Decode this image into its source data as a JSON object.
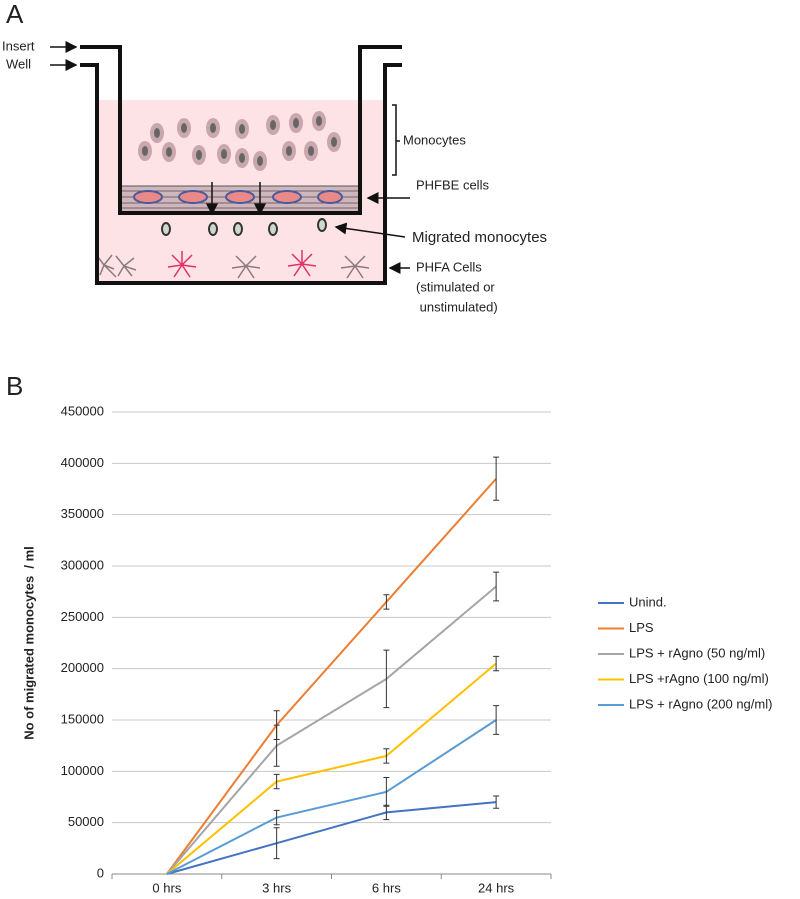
{
  "panel_a": {
    "label": "A",
    "insert": "Insert",
    "well": "Well",
    "monocytes": "Monocytes",
    "phfbe": "PHFBE cells",
    "migrated": "Migrated monocytes",
    "phfa": [
      "PHFA Cells",
      "(stimulated or",
      " unstimulated)"
    ]
  },
  "chart_data": {
    "type": "line",
    "panel_label": "B",
    "y_label": "No of migrated monocytes  / ml",
    "categories": [
      "0 hrs",
      "3 hrs",
      "6 hrs",
      "24 hrs"
    ],
    "ylim": [
      0,
      450000
    ],
    "yticks": [
      0,
      50000,
      100000,
      150000,
      200000,
      250000,
      300000,
      350000,
      400000,
      450000
    ],
    "grid": true,
    "legend": "right",
    "series": [
      {
        "name": "Unind.",
        "color": "#4472c4",
        "values": [
          0,
          30000,
          60000,
          70000
        ],
        "errors": [
          null,
          15000,
          7000,
          6000
        ]
      },
      {
        "name": "LPS",
        "color": "#ed7d31",
        "values": [
          0,
          145000,
          265000,
          385000
        ],
        "errors": [
          null,
          14000,
          7000,
          21000
        ]
      },
      {
        "name": "LPS + rAgno (50 ng/ml)",
        "color": "#a5a5a5",
        "values": [
          0,
          125000,
          190000,
          280000
        ],
        "errors": [
          null,
          20000,
          28000,
          14000
        ]
      },
      {
        "name": "LPS +rAgno (100 ng/ml)",
        "color": "#ffc000",
        "values": [
          0,
          90000,
          115000,
          205000
        ],
        "errors": [
          null,
          7000,
          7000,
          7000
        ]
      },
      {
        "name": "LPS + rAgno (200 ng/ml)",
        "color": "#5b9bd5",
        "values": [
          0,
          55000,
          80000,
          150000
        ],
        "errors": [
          null,
          7000,
          14000,
          14000
        ]
      }
    ]
  }
}
